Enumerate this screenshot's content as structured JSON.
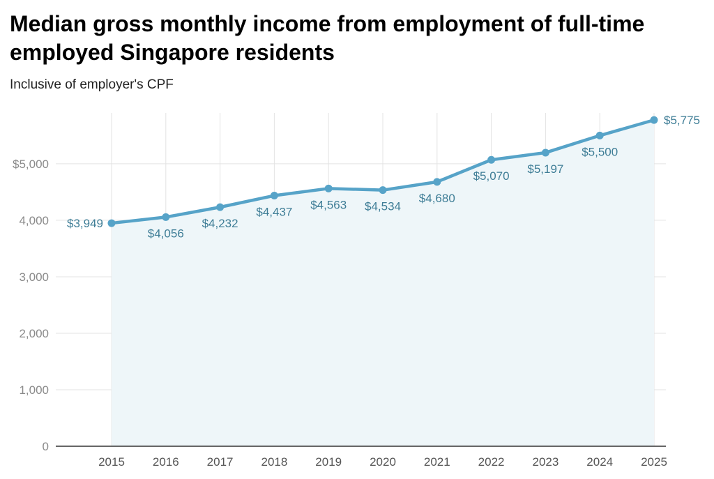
{
  "header": {
    "title": "Median gross monthly income from employment of full-time employed Singapore residents",
    "subtitle": "Inclusive of employer's CPF"
  },
  "colors": {
    "line": "#56a3c8",
    "fill": "#eef6f9",
    "grid": "#e3e3e3",
    "axis": "#333333",
    "label": "#3e7d96"
  },
  "chart_data": {
    "type": "line",
    "title": "Median gross monthly income from employment of full-time employed Singapore residents",
    "subtitle": "Inclusive of employer's CPF",
    "xlabel": "",
    "ylabel": "",
    "x": [
      "2015",
      "2016",
      "2017",
      "2018",
      "2019",
      "2020",
      "2021",
      "2022",
      "2023",
      "2024",
      "2025"
    ],
    "values": [
      3949,
      4056,
      4232,
      4437,
      4563,
      4534,
      4680,
      5070,
      5197,
      5500,
      5775
    ],
    "data_labels": [
      "$3,949",
      "$4,056",
      "$4,232",
      "$4,437",
      "$4,563",
      "$4,534",
      "$4,680",
      "$5,070",
      "$5,197",
      "$5,500",
      "$5,775"
    ],
    "label_positions": [
      "left",
      "below",
      "below",
      "below",
      "below",
      "below",
      "below",
      "below",
      "below",
      "below",
      "right"
    ],
    "ylim": [
      0,
      5900
    ],
    "yticks": [
      0,
      1000,
      2000,
      3000,
      4000,
      5000
    ],
    "ytick_labels": [
      "0",
      "1,000",
      "2,000",
      "3,000",
      "4,000",
      "$5,000"
    ],
    "grid": true,
    "area_fill": true
  }
}
